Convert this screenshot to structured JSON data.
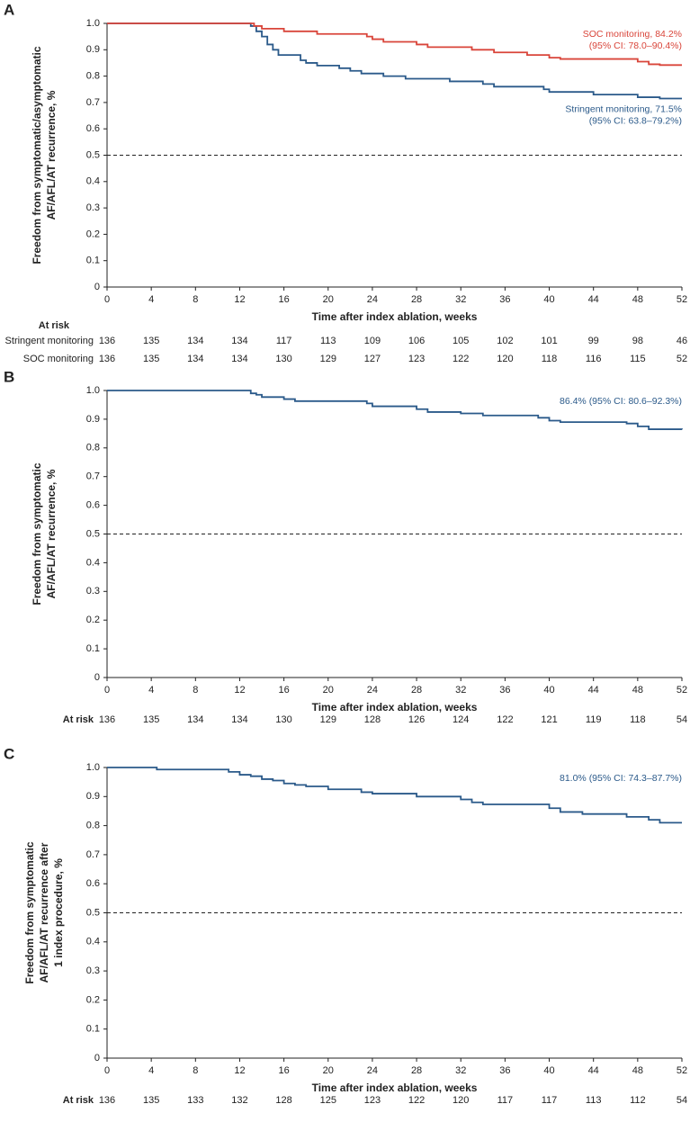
{
  "chart_data": [
    {
      "type": "step",
      "panel_label": "A",
      "ylabel": [
        "Freedom from symptomatic/asymptomatic",
        "AF/AFL/AT recurrence, %"
      ],
      "xlabel": "Time after index ablation, weeks",
      "xlim": [
        0,
        52
      ],
      "xticks": [
        0,
        4,
        8,
        12,
        16,
        20,
        24,
        28,
        32,
        36,
        40,
        44,
        48,
        52
      ],
      "ylim": [
        0,
        1
      ],
      "yticks": [
        0,
        0.1,
        0.2,
        0.3,
        0.4,
        0.5,
        0.6,
        0.7,
        0.8,
        0.9,
        {
          "value": 1,
          "label": "1.0"
        }
      ],
      "reference_line": 0.5,
      "series": [
        {
          "color": "#2b5a8a",
          "annotation": [
            "Stringent monitoring, 71.5%",
            "(95% CI: 63.8–79.2%)"
          ],
          "x": [
            0,
            13,
            13.5,
            14,
            14.5,
            15,
            15.5,
            17.5,
            18,
            19,
            21,
            22,
            23,
            25,
            27,
            31,
            34,
            35,
            39.5,
            40,
            44,
            48,
            50,
            52
          ],
          "values": [
            1,
            0.99,
            0.97,
            0.95,
            0.92,
            0.9,
            0.88,
            0.86,
            0.85,
            0.84,
            0.83,
            0.82,
            0.81,
            0.8,
            0.79,
            0.78,
            0.77,
            0.76,
            0.75,
            0.74,
            0.73,
            0.72,
            0.715,
            0.715
          ]
        },
        {
          "color": "#d9453a",
          "annotation": [
            "SOC monitoring, 84.2%",
            "(95% CI: 78.0–90.4%)"
          ],
          "x": [
            0,
            13.3,
            14,
            16,
            19,
            23.5,
            24,
            25,
            28,
            29,
            33,
            35,
            38,
            40,
            41,
            48,
            49,
            50,
            52
          ],
          "values": [
            1,
            0.99,
            0.98,
            0.97,
            0.96,
            0.95,
            0.94,
            0.93,
            0.92,
            0.91,
            0.9,
            0.89,
            0.88,
            0.87,
            0.865,
            0.855,
            0.845,
            0.842,
            0.842
          ]
        }
      ],
      "at_risk": {
        "header": "At risk",
        "rows": [
          {
            "label": "Stringent monitoring",
            "values": [
              136,
              135,
              134,
              134,
              117,
              113,
              109,
              106,
              105,
              102,
              101,
              99,
              98,
              46
            ]
          },
          {
            "label": "SOC monitoring",
            "values": [
              136,
              135,
              134,
              134,
              130,
              129,
              127,
              123,
              122,
              120,
              118,
              116,
              115,
              52
            ]
          }
        ]
      }
    },
    {
      "type": "step",
      "panel_label": "B",
      "ylabel": [
        "Freedom from symptomatic",
        "AF/AFL/AT recurrence, %"
      ],
      "xlabel": "Time after index ablation, weeks",
      "xlim": [
        0,
        52
      ],
      "xticks": [
        0,
        4,
        8,
        12,
        16,
        20,
        24,
        28,
        32,
        36,
        40,
        44,
        48,
        52
      ],
      "ylim": [
        0,
        1
      ],
      "yticks": [
        0,
        0.1,
        0.2,
        0.3,
        0.4,
        0.5,
        0.6,
        0.7,
        0.8,
        0.9,
        {
          "value": 1,
          "label": "1.0"
        }
      ],
      "reference_line": 0.5,
      "series": [
        {
          "color": "#2b5a8a",
          "annotation": [
            "86.4% (95% CI: 80.6–92.3%)"
          ],
          "x": [
            0,
            13,
            13.5,
            14,
            16,
            17,
            23.5,
            24,
            28,
            29,
            32,
            34,
            39,
            40,
            41,
            47,
            48,
            49,
            52
          ],
          "values": [
            1,
            0.99,
            0.985,
            0.977,
            0.97,
            0.963,
            0.955,
            0.945,
            0.935,
            0.925,
            0.92,
            0.913,
            0.905,
            0.895,
            0.89,
            0.885,
            0.875,
            0.865,
            0.864
          ]
        }
      ],
      "at_risk": {
        "rows": [
          {
            "label": "At risk",
            "values": [
              136,
              135,
              134,
              134,
              130,
              129,
              128,
              126,
              124,
              122,
              121,
              119,
              118,
              54
            ]
          }
        ]
      }
    },
    {
      "type": "step",
      "panel_label": "C",
      "ylabel": [
        "Freedom from symptomatic",
        "AF/AFL/AT recurrence after",
        "1 index procedure, %"
      ],
      "xlabel": "Time after index ablation, weeks",
      "xlim": [
        0,
        52
      ],
      "xticks": [
        0,
        4,
        8,
        12,
        16,
        20,
        24,
        28,
        32,
        36,
        40,
        44,
        48,
        52
      ],
      "ylim": [
        0,
        1
      ],
      "yticks": [
        0,
        0.1,
        0.2,
        0.3,
        0.4,
        0.5,
        0.6,
        0.7,
        0.8,
        0.9,
        {
          "value": 1,
          "label": "1.0"
        }
      ],
      "reference_line": 0.5,
      "series": [
        {
          "color": "#2b5a8a",
          "annotation": [
            "81.0% (95% CI: 74.3–87.7%)"
          ],
          "x": [
            0,
            4.5,
            11,
            12,
            13,
            14,
            15,
            16,
            17,
            18,
            20,
            23,
            24,
            28,
            32,
            33,
            34,
            40,
            41,
            43,
            47,
            49,
            50,
            52
          ],
          "values": [
            1,
            0.993,
            0.985,
            0.975,
            0.97,
            0.96,
            0.955,
            0.945,
            0.94,
            0.935,
            0.925,
            0.915,
            0.91,
            0.9,
            0.89,
            0.88,
            0.873,
            0.86,
            0.847,
            0.84,
            0.83,
            0.82,
            0.81,
            0.81
          ]
        }
      ],
      "at_risk": {
        "rows": [
          {
            "label": "At risk",
            "values": [
              136,
              135,
              133,
              132,
              128,
              125,
              123,
              122,
              120,
              117,
              117,
              113,
              112,
              54
            ]
          }
        ]
      }
    }
  ]
}
